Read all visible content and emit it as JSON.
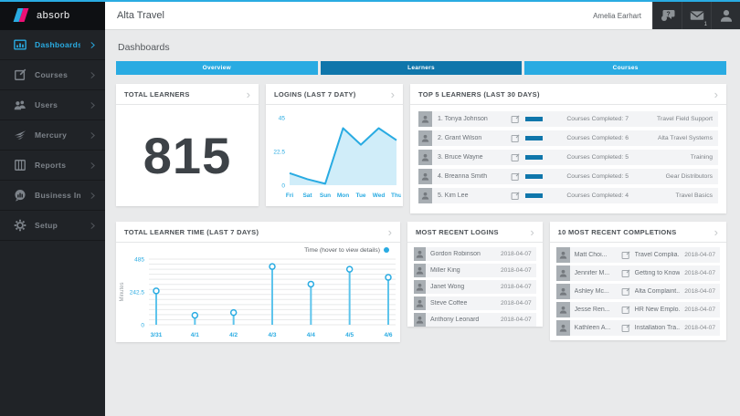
{
  "colors": {
    "accent": "#29abe2",
    "accent_dark": "#0f76ab",
    "logo_cyan": "#29abe2",
    "logo_pink": "#ec1075",
    "stem_blue": "#5ec4ec",
    "area_fill": "#29abe2"
  },
  "topbar": {
    "title": "Alta Travel",
    "user_name": "Amelia Earhart",
    "mail_badge": "1"
  },
  "sidebar": {
    "logo_text": "absorb",
    "items": [
      {
        "label": "Dashboards"
      },
      {
        "label": "Courses"
      },
      {
        "label": "Users"
      },
      {
        "label": "Mercury"
      },
      {
        "label": "Reports"
      },
      {
        "label": "Business Intell..."
      },
      {
        "label": "Setup"
      }
    ]
  },
  "page": {
    "heading": "Dashboards",
    "tabs": [
      {
        "label": "Overview"
      },
      {
        "label": "Learners"
      },
      {
        "label": "Courses"
      }
    ]
  },
  "total_learners_card": {
    "title": "TOTAL LEARNERS",
    "value": "815"
  },
  "logins_card": {
    "title": "LOGINS (LAST 7 DATY)"
  },
  "top5_card": {
    "title": "TOP 5 LEARNERS (LAST 30 DAYS)",
    "rows": [
      {
        "name": "1. Tonya Johnson",
        "completed": "Courses Completed: 7",
        "course": "Travel Field Support",
        "progress": 100
      },
      {
        "name": "2. Grant Wilson",
        "completed": "Courses Completed: 6",
        "course": "Alta Travel Systems",
        "progress": 86
      },
      {
        "name": "3. Bruce Wayne",
        "completed": "Courses Completed: 5",
        "course": "Training",
        "progress": 71
      },
      {
        "name": "4. Breanna Smith",
        "completed": "Courses Completed: 5",
        "course": "Gear Distributors",
        "progress": 71
      },
      {
        "name": "5. Kim Lee",
        "completed": "Courses Completed: 4",
        "course": "Travel Basics",
        "progress": 57
      }
    ]
  },
  "learner_time_card": {
    "title": "TOTAL LEARNER TIME (LAST 7 DAYS)",
    "legend": "Time (hover to view details)",
    "ylabel": "Minutes"
  },
  "recent_logins_card": {
    "title": "MOST RECENT LOGINS",
    "rows": [
      {
        "name": "Gordon Robinson",
        "date": "2018-04-07"
      },
      {
        "name": "Miller King",
        "date": "2018-04-07"
      },
      {
        "name": "Janet Wong",
        "date": "2018-04-07"
      },
      {
        "name": "Steve Coffee",
        "date": "2018-04-07"
      },
      {
        "name": "Anthony Leonard",
        "date": "2018-04-07"
      }
    ]
  },
  "completions_card": {
    "title": "10 MOST RECENT COMPLETIONS",
    "rows": [
      {
        "name": "Matt Choi...",
        "course": "Travel Complia...",
        "date": "2018-04-07"
      },
      {
        "name": "Jennifer M...",
        "course": "Getting to Know...",
        "date": "2018-04-07"
      },
      {
        "name": "Ashley Mc...",
        "course": "Alta Complaint...",
        "date": "2018-04-07"
      },
      {
        "name": "Jesse Ren...",
        "course": "HR New Emplo...",
        "date": "2018-04-07"
      },
      {
        "name": "Kathleen A...",
        "course": "Installation Tra...",
        "date": "2018-04-07"
      }
    ]
  },
  "chart_data": [
    {
      "type": "line",
      "title": "LOGINS (LAST 7 DATY)",
      "x": [
        "Fri",
        "Sat",
        "Sun",
        "Mon",
        "Tue",
        "Wed",
        "Thu"
      ],
      "values": [
        8,
        4,
        1,
        38,
        27,
        38,
        30
      ],
      "ylim": [
        0,
        45
      ],
      "yticks": [
        0,
        22.5,
        45
      ],
      "area": true,
      "grid": false,
      "legend_position": "none"
    },
    {
      "type": "lollipop",
      "title": "TOTAL LEARNER TIME (LAST 7 DAYS)",
      "x": [
        "3/31",
        "4/1",
        "4/2",
        "4/3",
        "4/4",
        "4/5",
        "4/6"
      ],
      "values": [
        250,
        70,
        90,
        430,
        300,
        410,
        350
      ],
      "ylim": [
        0,
        485
      ],
      "yticks": [
        0,
        242.5,
        485
      ],
      "ylabel": "Minutes",
      "legend": "Time (hover to view details)",
      "legend_position": "top-right",
      "grid": true
    }
  ]
}
